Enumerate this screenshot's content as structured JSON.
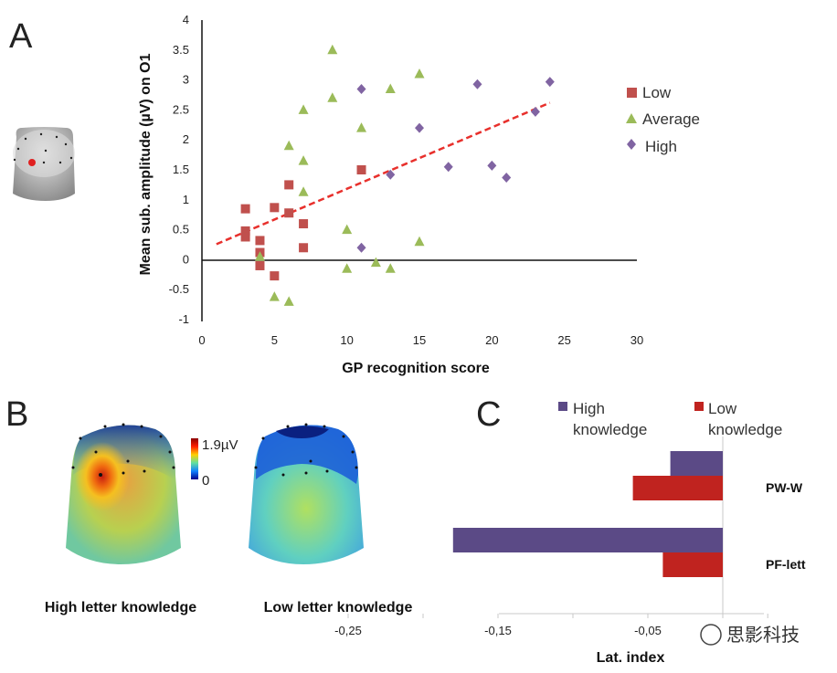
{
  "panels": {
    "a": "A",
    "b": "B",
    "c": "C"
  },
  "chart_data": [
    {
      "panel": "A",
      "type": "scatter",
      "xlabel": "GP recognition score",
      "ylabel": "Mean sub. amplitude (µV) on O1",
      "xlim": [
        0,
        30
      ],
      "ylim": [
        -1,
        4
      ],
      "xticks": [
        "0",
        "5",
        "10",
        "15",
        "20",
        "25",
        "30"
      ],
      "yticks": [
        "-1",
        "-0.5",
        "0",
        "0.5",
        "1",
        "1.5",
        "2",
        "2.5",
        "3",
        "3.5",
        "4"
      ],
      "legend_position": "right",
      "series": [
        {
          "name": "Low",
          "color": "#c0504d",
          "marker": "square",
          "points": [
            [
              3,
              0.85
            ],
            [
              3,
              0.48
            ],
            [
              3,
              0.38
            ],
            [
              4,
              0.32
            ],
            [
              4,
              0.12
            ],
            [
              4,
              -0.1
            ],
            [
              5,
              0.87
            ],
            [
              5,
              -0.27
            ],
            [
              6,
              1.25
            ],
            [
              6,
              0.78
            ],
            [
              7,
              0.6
            ],
            [
              7,
              0.2
            ],
            [
              11,
              1.5
            ]
          ]
        },
        {
          "name": "Average",
          "color": "#9bbb59",
          "marker": "triangle",
          "points": [
            [
              4,
              0.05
            ],
            [
              5,
              -0.62
            ],
            [
              6,
              1.9
            ],
            [
              6,
              -0.7
            ],
            [
              7,
              2.5
            ],
            [
              7,
              1.65
            ],
            [
              7,
              1.13
            ],
            [
              9,
              3.5
            ],
            [
              9,
              2.7
            ],
            [
              10,
              0.5
            ],
            [
              10,
              -0.15
            ],
            [
              11,
              2.2
            ],
            [
              12,
              -0.05
            ],
            [
              13,
              2.85
            ],
            [
              13,
              -0.15
            ],
            [
              15,
              3.1
            ],
            [
              15,
              0.3
            ]
          ]
        },
        {
          "name": "High",
          "color": "#8064a2",
          "marker": "diamond",
          "points": [
            [
              11,
              2.85
            ],
            [
              11,
              0.2
            ],
            [
              13,
              1.42
            ],
            [
              15,
              2.2
            ],
            [
              17,
              1.55
            ],
            [
              19,
              2.93
            ],
            [
              20,
              1.57
            ],
            [
              21,
              1.37
            ],
            [
              23,
              2.47
            ],
            [
              24,
              2.97
            ]
          ]
        }
      ],
      "trendline": {
        "color": "#e8302c",
        "style": "dashed",
        "points": [
          [
            1,
            0.26
          ],
          [
            24,
            2.62
          ]
        ]
      }
    },
    {
      "panel": "B",
      "type": "heatmap",
      "colorbar": {
        "max_label": "1.9µV",
        "min_label": "0"
      },
      "maps": [
        {
          "caption": "High letter knowledge"
        },
        {
          "caption": "Low letter knowledge"
        }
      ]
    },
    {
      "panel": "C",
      "type": "bar",
      "orientation": "horizontal",
      "xlabel": "Lat. index",
      "xlim": [
        -0.25,
        0
      ],
      "xticks": [
        "-0,25",
        "-0,15",
        "-0,05"
      ],
      "categories": [
        "PW-W",
        "PF-lett"
      ],
      "series": [
        {
          "name": "High knowledge",
          "legend_lines": [
            "High",
            "knowledge"
          ],
          "color": "#5b4a86",
          "values": [
            -0.035,
            -0.18
          ]
        },
        {
          "name": "Low knowledge",
          "legend_lines": [
            "Low",
            "knowledge"
          ],
          "color": "#c0231f",
          "values": [
            -0.06,
            -0.04
          ]
        }
      ]
    }
  ],
  "watermark": "思影科技"
}
